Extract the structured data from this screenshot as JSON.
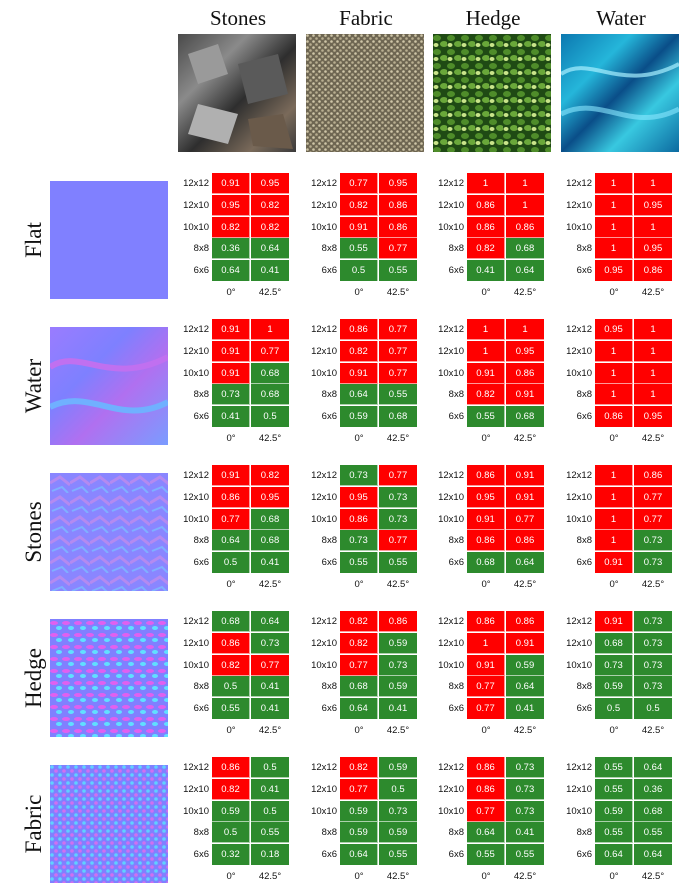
{
  "columns": [
    "Stones",
    "Fabric",
    "Hedge",
    "Water"
  ],
  "rows": [
    "Flat",
    "Water",
    "Stones",
    "Hedge",
    "Fabric"
  ],
  "grid_row_labels": [
    "12x12",
    "12x10",
    "10x10",
    "8x8",
    "6x6"
  ],
  "grid_col_labels": [
    "0°",
    "42.5°"
  ],
  "colors": {
    "high": "#ff0000",
    "low": "#2d8a2d"
  },
  "values": [
    [
      [
        [
          0.91,
          0.95
        ],
        [
          0.95,
          0.82
        ],
        [
          0.82,
          0.82
        ],
        [
          0.36,
          0.64
        ],
        [
          0.64,
          0.41
        ]
      ],
      [
        [
          0.77,
          0.95
        ],
        [
          0.82,
          0.86
        ],
        [
          0.91,
          0.86
        ],
        [
          0.55,
          0.77
        ],
        [
          0.5,
          0.55
        ]
      ],
      [
        [
          1,
          1
        ],
        [
          0.86,
          1
        ],
        [
          0.86,
          0.86
        ],
        [
          0.82,
          0.68
        ],
        [
          0.41,
          0.64
        ]
      ],
      [
        [
          1,
          1
        ],
        [
          1,
          0.95
        ],
        [
          1,
          1
        ],
        [
          1,
          0.95
        ],
        [
          0.95,
          0.86
        ]
      ]
    ],
    [
      [
        [
          0.91,
          1
        ],
        [
          0.91,
          0.77
        ],
        [
          0.91,
          0.68
        ],
        [
          0.73,
          0.68
        ],
        [
          0.41,
          0.5
        ]
      ],
      [
        [
          0.86,
          0.77
        ],
        [
          0.82,
          0.77
        ],
        [
          0.91,
          0.77
        ],
        [
          0.64,
          0.55
        ],
        [
          0.59,
          0.68
        ]
      ],
      [
        [
          1,
          1
        ],
        [
          1,
          0.95
        ],
        [
          0.91,
          0.86
        ],
        [
          0.82,
          0.91
        ],
        [
          0.55,
          0.68
        ]
      ],
      [
        [
          0.95,
          1
        ],
        [
          1,
          1
        ],
        [
          1,
          1
        ],
        [
          1,
          1
        ],
        [
          0.86,
          0.95
        ]
      ]
    ],
    [
      [
        [
          0.91,
          0.82
        ],
        [
          0.86,
          0.95
        ],
        [
          0.77,
          0.68
        ],
        [
          0.64,
          0.68
        ],
        [
          0.5,
          0.41
        ]
      ],
      [
        [
          0.73,
          0.77
        ],
        [
          0.95,
          0.73
        ],
        [
          0.86,
          0.73
        ],
        [
          0.73,
          0.77
        ],
        [
          0.55,
          0.55
        ]
      ],
      [
        [
          0.86,
          0.91
        ],
        [
          0.95,
          0.91
        ],
        [
          0.91,
          0.77
        ],
        [
          0.86,
          0.86
        ],
        [
          0.68,
          0.64
        ]
      ],
      [
        [
          1,
          0.86
        ],
        [
          1,
          0.77
        ],
        [
          1,
          0.77
        ],
        [
          1,
          0.73
        ],
        [
          0.91,
          0.73
        ]
      ]
    ],
    [
      [
        [
          0.68,
          0.64
        ],
        [
          0.86,
          0.73
        ],
        [
          0.82,
          0.77
        ],
        [
          0.5,
          0.41
        ],
        [
          0.55,
          0.41
        ]
      ],
      [
        [
          0.82,
          0.86
        ],
        [
          0.82,
          0.59
        ],
        [
          0.77,
          0.73
        ],
        [
          0.68,
          0.59
        ],
        [
          0.64,
          0.41
        ]
      ],
      [
        [
          0.86,
          0.86
        ],
        [
          1,
          0.91
        ],
        [
          0.91,
          0.59
        ],
        [
          0.77,
          0.64
        ],
        [
          0.77,
          0.41
        ]
      ],
      [
        [
          0.91,
          0.73
        ],
        [
          0.68,
          0.73
        ],
        [
          0.73,
          0.73
        ],
        [
          0.59,
          0.73
        ],
        [
          0.5,
          0.5
        ]
      ]
    ],
    [
      [
        [
          0.86,
          0.5
        ],
        [
          0.82,
          0.41
        ],
        [
          0.59,
          0.5
        ],
        [
          0.5,
          0.55
        ],
        [
          0.32,
          0.18
        ]
      ],
      [
        [
          0.82,
          0.59
        ],
        [
          0.77,
          0.5
        ],
        [
          0.59,
          0.73
        ],
        [
          0.59,
          0.59
        ],
        [
          0.64,
          0.55
        ]
      ],
      [
        [
          0.86,
          0.73
        ],
        [
          0.86,
          0.73
        ],
        [
          0.77,
          0.73
        ],
        [
          0.64,
          0.41
        ],
        [
          0.55,
          0.55
        ]
      ],
      [
        [
          0.55,
          0.64
        ],
        [
          0.55,
          0.36
        ],
        [
          0.59,
          0.68
        ],
        [
          0.55,
          0.55
        ],
        [
          0.64,
          0.64
        ]
      ]
    ]
  ],
  "red_mask": [
    [
      [
        [
          1,
          1
        ],
        [
          1,
          1
        ],
        [
          1,
          1
        ],
        [
          0,
          0
        ],
        [
          0,
          0
        ]
      ],
      [
        [
          1,
          1
        ],
        [
          1,
          1
        ],
        [
          1,
          1
        ],
        [
          0,
          1
        ],
        [
          0,
          0
        ]
      ],
      [
        [
          1,
          1
        ],
        [
          1,
          1
        ],
        [
          1,
          1
        ],
        [
          1,
          0
        ],
        [
          0,
          0
        ]
      ],
      [
        [
          1,
          1
        ],
        [
          1,
          1
        ],
        [
          1,
          1
        ],
        [
          1,
          1
        ],
        [
          1,
          1
        ]
      ]
    ],
    [
      [
        [
          1,
          1
        ],
        [
          1,
          1
        ],
        [
          1,
          0
        ],
        [
          0,
          0
        ],
        [
          0,
          0
        ]
      ],
      [
        [
          1,
          1
        ],
        [
          1,
          1
        ],
        [
          1,
          1
        ],
        [
          0,
          0
        ],
        [
          0,
          0
        ]
      ],
      [
        [
          1,
          1
        ],
        [
          1,
          1
        ],
        [
          1,
          1
        ],
        [
          1,
          1
        ],
        [
          0,
          0
        ]
      ],
      [
        [
          1,
          1
        ],
        [
          1,
          1
        ],
        [
          1,
          1
        ],
        [
          1,
          1
        ],
        [
          1,
          1
        ]
      ]
    ],
    [
      [
        [
          1,
          1
        ],
        [
          1,
          1
        ],
        [
          1,
          0
        ],
        [
          0,
          0
        ],
        [
          0,
          0
        ]
      ],
      [
        [
          0,
          1
        ],
        [
          1,
          0
        ],
        [
          1,
          0
        ],
        [
          0,
          1
        ],
        [
          0,
          0
        ]
      ],
      [
        [
          1,
          1
        ],
        [
          1,
          1
        ],
        [
          1,
          1
        ],
        [
          1,
          1
        ],
        [
          0,
          0
        ]
      ],
      [
        [
          1,
          1
        ],
        [
          1,
          1
        ],
        [
          1,
          1
        ],
        [
          1,
          0
        ],
        [
          1,
          0
        ]
      ]
    ],
    [
      [
        [
          0,
          0
        ],
        [
          1,
          0
        ],
        [
          1,
          1
        ],
        [
          0,
          0
        ],
        [
          0,
          0
        ]
      ],
      [
        [
          1,
          1
        ],
        [
          1,
          0
        ],
        [
          1,
          0
        ],
        [
          0,
          0
        ],
        [
          0,
          0
        ]
      ],
      [
        [
          1,
          1
        ],
        [
          1,
          1
        ],
        [
          1,
          0
        ],
        [
          1,
          0
        ],
        [
          1,
          0
        ]
      ],
      [
        [
          1,
          0
        ],
        [
          0,
          0
        ],
        [
          0,
          0
        ],
        [
          0,
          0
        ],
        [
          0,
          0
        ]
      ]
    ],
    [
      [
        [
          1,
          0
        ],
        [
          1,
          0
        ],
        [
          0,
          0
        ],
        [
          0,
          0
        ],
        [
          0,
          0
        ]
      ],
      [
        [
          1,
          0
        ],
        [
          1,
          0
        ],
        [
          0,
          0
        ],
        [
          0,
          0
        ],
        [
          0,
          0
        ]
      ],
      [
        [
          1,
          0
        ],
        [
          1,
          0
        ],
        [
          1,
          0
        ],
        [
          0,
          0
        ],
        [
          0,
          0
        ]
      ],
      [
        [
          0,
          0
        ],
        [
          0,
          0
        ],
        [
          0,
          0
        ],
        [
          0,
          0
        ],
        [
          0,
          0
        ]
      ]
    ]
  ]
}
